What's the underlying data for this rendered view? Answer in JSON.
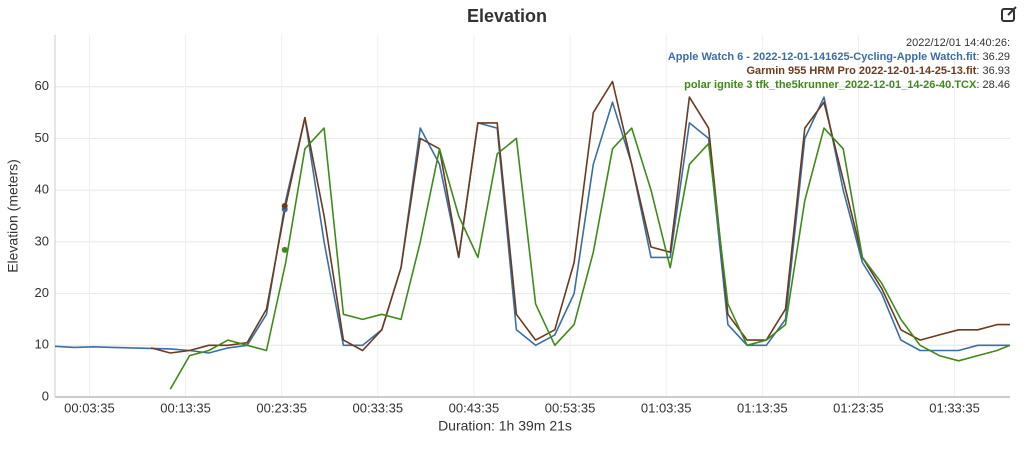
{
  "chart_data": {
    "type": "line",
    "title": "Elevation",
    "ylabel": "Elevation (meters)",
    "xlabel": "Duration: 1h 39m 21s",
    "grid": true,
    "xlim": [
      0,
      5961
    ],
    "ylim": [
      0,
      70
    ],
    "yticks": [
      0,
      10,
      20,
      30,
      40,
      50,
      60
    ],
    "xticks": [
      {
        "value": 215,
        "label": "00:03:35"
      },
      {
        "value": 815,
        "label": "00:13:35"
      },
      {
        "value": 1415,
        "label": "00:23:35"
      },
      {
        "value": 2015,
        "label": "00:33:35"
      },
      {
        "value": 2615,
        "label": "00:43:35"
      },
      {
        "value": 3215,
        "label": "00:53:35"
      },
      {
        "value": 3815,
        "label": "01:03:35"
      },
      {
        "value": 4415,
        "label": "01:13:35"
      },
      {
        "value": 5015,
        "label": "01:23:35"
      },
      {
        "value": 5615,
        "label": "01:33:35"
      }
    ],
    "x": [
      0,
      120,
      240,
      360,
      480,
      600,
      720,
      840,
      960,
      1080,
      1200,
      1320,
      1440,
      1560,
      1680,
      1800,
      1920,
      2040,
      2160,
      2280,
      2400,
      2520,
      2640,
      2760,
      2880,
      3000,
      3120,
      3240,
      3360,
      3480,
      3600,
      3720,
      3840,
      3960,
      4080,
      4200,
      4320,
      4440,
      4560,
      4680,
      4800,
      4920,
      5040,
      5160,
      5280,
      5400,
      5520,
      5640,
      5760,
      5880,
      5961
    ],
    "series": [
      {
        "name": "Apple Watch 6 - 2022-12-01-141625-Cycling-Apple Watch.fit",
        "color": "#3a6ea5",
        "values": [
          9.8,
          9.6,
          9.7,
          9.6,
          9.5,
          9.4,
          9.3,
          9,
          8.5,
          9.5,
          10,
          16,
          38,
          54,
          30,
          10,
          10,
          13,
          25,
          52,
          45,
          27,
          53,
          52,
          13,
          10,
          12,
          20,
          45,
          57,
          45,
          27,
          27,
          53,
          50,
          14,
          10,
          10,
          15,
          50,
          58,
          40,
          26,
          20,
          11,
          9,
          9,
          9,
          10,
          10,
          10
        ]
      },
      {
        "name": "Garmin 955 HRM Pro 2022-12-01-14-25-13.fit",
        "color": "#6b3a1f",
        "values": [
          null,
          null,
          null,
          null,
          null,
          9.5,
          8.5,
          9,
          10,
          10,
          10.5,
          17,
          37,
          54,
          35,
          11,
          9,
          13,
          25,
          50,
          48,
          27,
          53,
          53,
          16,
          11,
          13,
          26,
          55,
          61,
          45,
          29,
          28,
          58,
          52,
          16,
          11,
          11,
          17,
          52,
          57,
          42,
          27,
          21,
          13,
          11,
          12,
          13,
          13,
          14,
          14
        ]
      },
      {
        "name": "polar ignite 3 tfk_the5krunner_2022-12-01_14-26-40.TCX",
        "color": "#3f8a1a",
        "values": [
          null,
          null,
          null,
          null,
          null,
          null,
          1.5,
          8,
          9,
          11,
          10,
          9,
          26,
          48,
          52,
          16,
          15,
          16,
          15,
          30,
          48,
          35,
          27,
          47,
          50,
          18,
          10,
          14,
          28,
          48,
          52,
          40,
          25,
          45,
          49,
          18,
          10,
          11,
          14,
          38,
          52,
          48,
          27,
          22,
          15,
          10,
          8,
          7,
          8,
          9,
          10
        ]
      }
    ],
    "hover": {
      "label": "2022/12/01 14:40:26:",
      "x": 1434,
      "values": [
        36.29,
        36.93,
        28.46
      ]
    }
  }
}
